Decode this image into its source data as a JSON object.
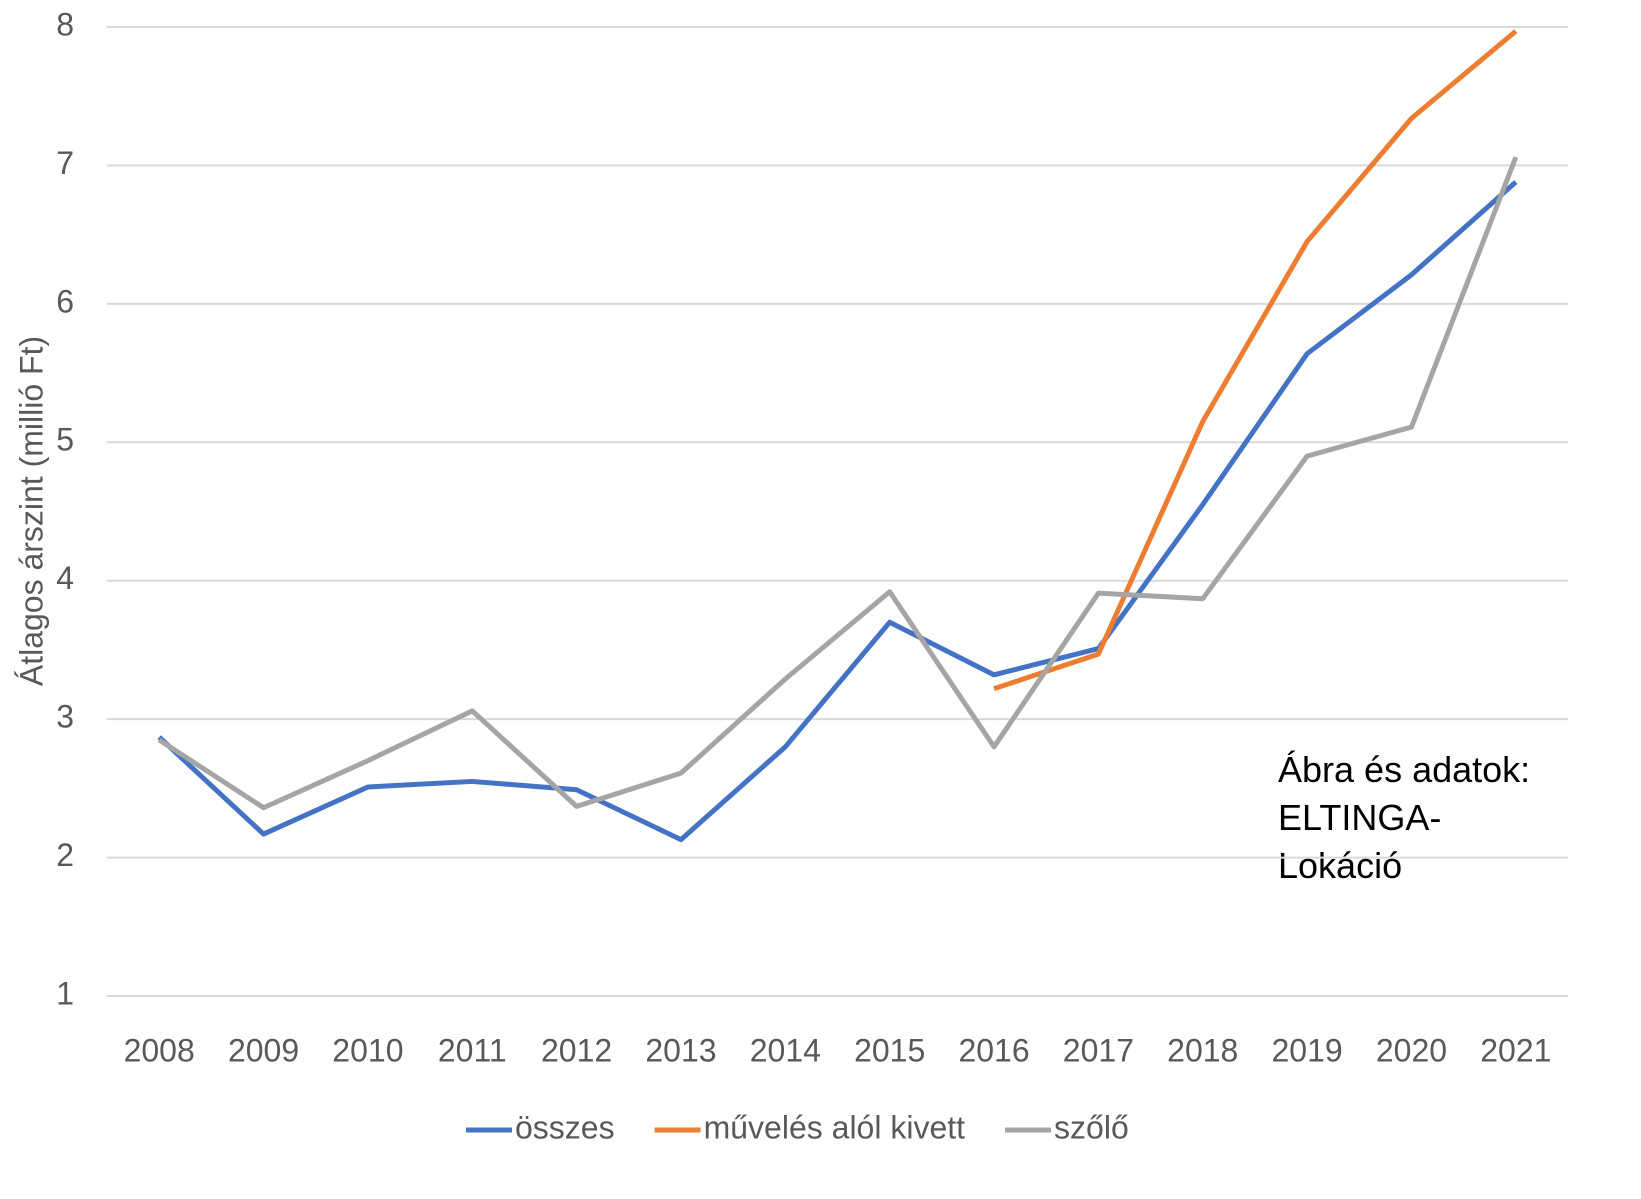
{
  "chart_data": {
    "type": "line",
    "y_label": "Átlagos árszint (millió Ft)",
    "categories": [
      "2008",
      "2009",
      "2010",
      "2011",
      "2012",
      "2013",
      "2014",
      "2015",
      "2016",
      "2017",
      "2018",
      "2019",
      "2020",
      "2021"
    ],
    "series": [
      {
        "name": "összes",
        "color": "#4472c4",
        "values": [
          2.87,
          2.17,
          2.51,
          2.55,
          2.49,
          2.13,
          2.8,
          3.7,
          3.32,
          3.51,
          4.55,
          5.64,
          6.21,
          6.88
        ]
      },
      {
        "name": "művelés alól kivett",
        "color": "#ed7d31",
        "values": [
          null,
          null,
          null,
          null,
          null,
          null,
          null,
          null,
          3.22,
          3.47,
          5.15,
          6.45,
          7.34,
          7.97
        ]
      },
      {
        "name": "szőlő",
        "color": "#a5a5a5",
        "values": [
          2.85,
          2.36,
          2.7,
          3.06,
          2.37,
          2.61,
          3.29,
          3.92,
          2.8,
          3.91,
          3.87,
          4.9,
          5.11,
          7.06
        ]
      }
    ],
    "ylim": [
      1,
      8
    ],
    "yticks": [
      1,
      2,
      3,
      4,
      5,
      6,
      7,
      8
    ],
    "grid": true,
    "legend": "bottom",
    "annotation": [
      "Ábra és adatok:",
      "ELTINGA-",
      "Lokáció"
    ]
  }
}
